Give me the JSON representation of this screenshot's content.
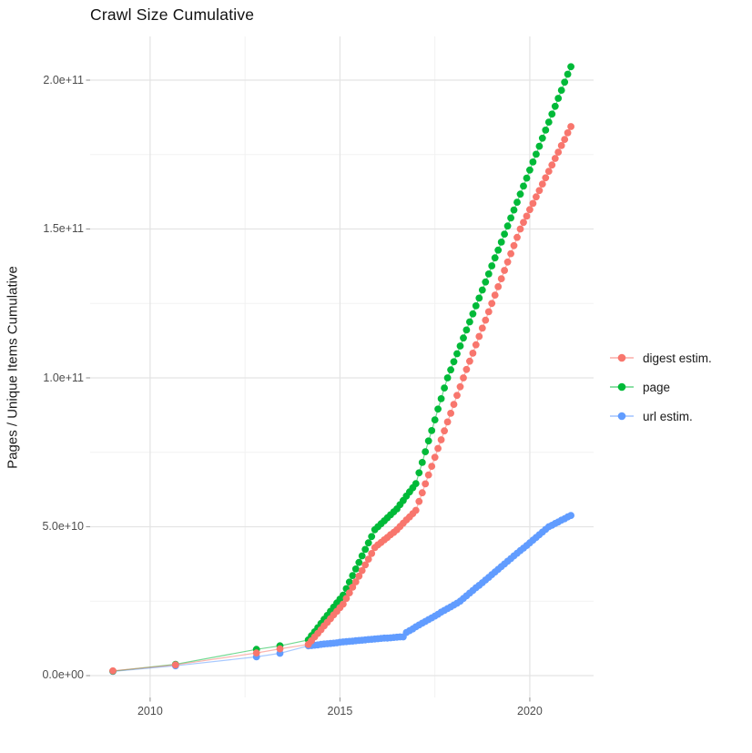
{
  "chart": {
    "title": "Crawl Size Cumulative",
    "y_axis": {
      "title": "Pages / Unique Items Cumulative",
      "major_ticks": [
        {
          "value_e9": 0,
          "label": "0.0e+00"
        },
        {
          "value_e9": 50,
          "label": "5.0e+10"
        },
        {
          "value_e9": 100,
          "label": "1.0e+11"
        },
        {
          "value_e9": 150,
          "label": "1.5e+11"
        },
        {
          "value_e9": 200,
          "label": "2.0e+11"
        }
      ],
      "minor_ticks_e9": [
        25,
        75,
        125,
        175
      ]
    },
    "x_axis": {
      "major_ticks": [
        {
          "value": 2010,
          "label": "2010"
        },
        {
          "value": 2015,
          "label": "2015"
        },
        {
          "value": 2020,
          "label": "2020"
        }
      ],
      "minor_ticks": [
        2012.5,
        2017.5
      ]
    },
    "colors": {
      "grid_major": "#e4e4e4",
      "grid_minor": "#f2f2f2",
      "tick_mark": "#999999",
      "tick_text": "#4d4d4d",
      "title_text": "#111111"
    }
  },
  "chart_data": {
    "type": "line",
    "title": "Crawl Size Cumulative",
    "xlabel": "",
    "ylabel": "Pages / Unique Items Cumulative",
    "x_unit": "year (decimal)",
    "y_unit": "count (values in billions, 1e9)",
    "x_range": [
      2008.42,
      2021.68
    ],
    "y_range_e9": [
      -7.34,
      214.68
    ],
    "grid": true,
    "legend_position": "right",
    "marker": "point",
    "x": [
      2009.02,
      2010.67,
      2012.8,
      2013.42,
      2014.167,
      2014.25,
      2014.333,
      2014.417,
      2014.5,
      2014.583,
      2014.667,
      2014.75,
      2014.833,
      2014.917,
      2015.0,
      2015.083,
      2015.167,
      2015.25,
      2015.333,
      2015.417,
      2015.5,
      2015.583,
      2015.667,
      2015.75,
      2015.833,
      2015.917,
      2016.0,
      2016.083,
      2016.167,
      2016.25,
      2016.333,
      2016.417,
      2016.5,
      2016.583,
      2016.667,
      2016.75,
      2016.833,
      2016.917,
      2017.0,
      2017.083,
      2017.167,
      2017.25,
      2017.333,
      2017.417,
      2017.5,
      2017.583,
      2017.667,
      2017.75,
      2017.833,
      2017.917,
      2018.0,
      2018.083,
      2018.167,
      2018.25,
      2018.333,
      2018.417,
      2018.5,
      2018.583,
      2018.667,
      2018.75,
      2018.833,
      2018.917,
      2019.0,
      2019.083,
      2019.167,
      2019.25,
      2019.333,
      2019.417,
      2019.5,
      2019.583,
      2019.667,
      2019.75,
      2019.833,
      2019.917,
      2020.0,
      2020.083,
      2020.167,
      2020.25,
      2020.333,
      2020.417,
      2020.5,
      2020.583,
      2020.667,
      2020.75,
      2020.833,
      2020.917,
      2021.0,
      2021.083
    ],
    "series": [
      {
        "name": "digest estim.",
        "color": "#F8766D",
        "values_e9": [
          1.6,
          3.6,
          7.6,
          9.0,
          10.5,
          11.7,
          13.0,
          14.2,
          15.4,
          16.7,
          17.9,
          19.1,
          20.4,
          21.6,
          22.8,
          24.0,
          25.9,
          27.8,
          29.7,
          31.5,
          33.4,
          35.3,
          37.2,
          39.1,
          41.0,
          43.0,
          43.9,
          44.7,
          45.6,
          46.4,
          47.3,
          48.1,
          49.0,
          50.1,
          51.2,
          52.3,
          53.3,
          54.4,
          55.5,
          58.5,
          61.4,
          64.4,
          67.4,
          70.3,
          73.3,
          76.3,
          79.2,
          82.2,
          85.2,
          88.1,
          91.1,
          94.1,
          97.0,
          100.0,
          102.8,
          105.6,
          108.3,
          111.1,
          113.9,
          116.7,
          119.4,
          122.2,
          125.0,
          127.8,
          130.6,
          133.3,
          136.1,
          138.9,
          141.7,
          144.4,
          147.2,
          150.0,
          152.2,
          154.3,
          156.5,
          158.6,
          160.8,
          162.9,
          165.1,
          167.2,
          169.4,
          171.5,
          173.7,
          175.8,
          178.0,
          180.1,
          182.3,
          184.4
        ]
      },
      {
        "name": "page",
        "color": "#00BA38",
        "values_e9": [
          1.5,
          3.8,
          8.8,
          10.0,
          12.0,
          13.4,
          14.7,
          16.1,
          17.5,
          18.9,
          20.2,
          21.6,
          23.0,
          24.4,
          25.7,
          27.0,
          29.2,
          31.4,
          33.6,
          35.8,
          38.0,
          40.2,
          42.4,
          44.6,
          46.7,
          49.0,
          50.0,
          51.0,
          52.0,
          53.0,
          54.0,
          55.0,
          56.0,
          57.4,
          58.8,
          60.3,
          61.7,
          63.1,
          64.5,
          68.1,
          71.6,
          75.2,
          78.8,
          82.3,
          85.9,
          89.5,
          93.0,
          96.6,
          100.0,
          102.7,
          105.4,
          108.1,
          110.7,
          113.4,
          116.1,
          118.8,
          121.5,
          124.2,
          126.8,
          129.5,
          132.2,
          134.9,
          137.6,
          140.3,
          142.9,
          145.6,
          148.3,
          151.0,
          153.7,
          156.4,
          159.0,
          161.7,
          164.4,
          167.1,
          169.8,
          172.5,
          175.1,
          177.8,
          180.5,
          183.2,
          185.9,
          188.6,
          191.2,
          193.9,
          196.6,
          199.3,
          202.0,
          204.5
        ]
      },
      {
        "name": "url estim.",
        "color": "#619CFF",
        "values_e9": [
          1.4,
          3.3,
          6.3,
          7.5,
          10.0,
          10.1,
          10.2,
          10.3,
          10.5,
          10.6,
          10.7,
          10.8,
          10.9,
          11.0,
          11.2,
          11.3,
          11.4,
          11.5,
          11.6,
          11.7,
          11.8,
          11.9,
          12.0,
          12.1,
          12.2,
          12.3,
          12.4,
          12.5,
          12.6,
          12.6,
          12.7,
          12.8,
          12.9,
          13.0,
          13.0,
          14.5,
          15.1,
          15.7,
          16.4,
          17.0,
          17.6,
          18.2,
          18.8,
          19.4,
          20.0,
          20.6,
          21.3,
          21.9,
          22.5,
          23.1,
          23.7,
          24.3,
          25.0,
          25.9,
          26.8,
          27.7,
          28.6,
          29.5,
          30.3,
          31.2,
          32.1,
          33.0,
          33.9,
          34.8,
          35.7,
          36.6,
          37.5,
          38.4,
          39.3,
          40.2,
          41.1,
          42.0,
          42.8,
          43.7,
          44.6,
          45.5,
          46.4,
          47.3,
          48.2,
          49.1,
          50.0,
          50.5,
          51.1,
          51.6,
          52.2,
          52.7,
          53.3,
          53.8
        ]
      }
    ]
  }
}
